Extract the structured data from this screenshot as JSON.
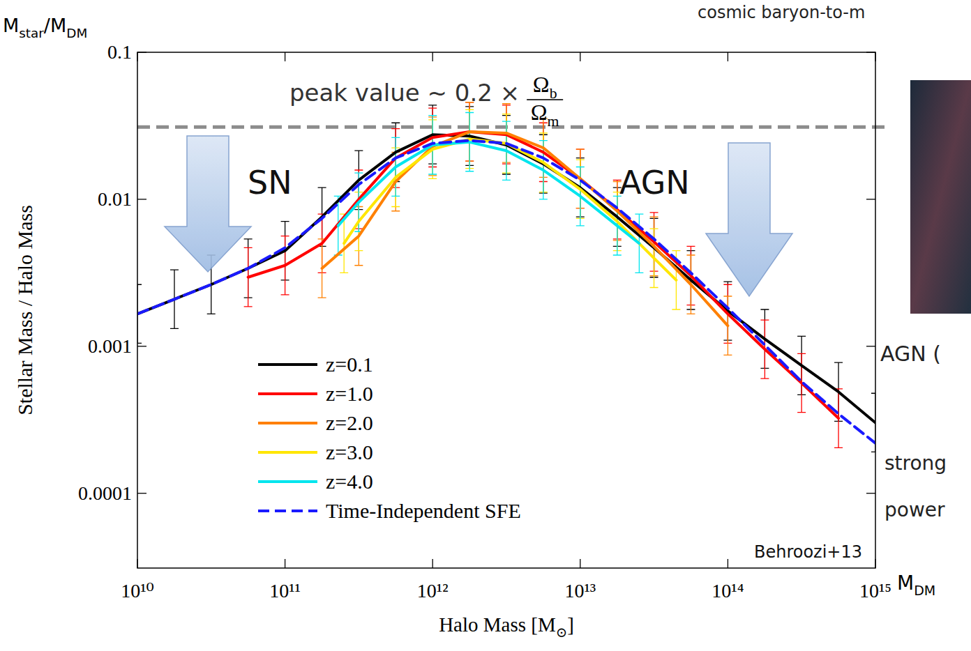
{
  "chart_data": {
    "type": "line",
    "log": true,
    "grid": false,
    "legend": "lower left",
    "x_label": [
      {
        "text": "Halo Mass [M"
      },
      {
        "text": "⊙",
        "sub": true
      },
      {
        "text": "]"
      }
    ],
    "y_label": "Stellar Mass / Halo Mass",
    "y_corner_label": [
      {
        "text": "M"
      },
      {
        "text": "star",
        "sub": true
      },
      {
        "text": "/M"
      },
      {
        "text": "DM",
        "sub": true
      }
    ],
    "x_corner_label": [
      {
        "text": "M"
      },
      {
        "text": "DM",
        "sub": true
      }
    ],
    "peak_label": {
      "text": "peak value ~ 0.2 ×",
      "numerator": [
        {
          "text": "Ω"
        },
        {
          "text": "b",
          "sub": true
        }
      ],
      "denominator": [
        {
          "text": "Ω"
        },
        {
          "text": "m",
          "sub": true
        }
      ]
    },
    "peak_line": 0.031,
    "annotations": [
      "SN",
      "AGN",
      "Behroozi+13"
    ],
    "side_texts": [
      "cosmic baryon-to-m",
      "AGN (",
      "strong",
      "power"
    ],
    "xlim": [
      10000000000.0,
      1000000000000000.0
    ],
    "ylim": [
      3.1e-05,
      0.1
    ],
    "xticks": [
      {
        "value": 10000000000.0,
        "label": "10¹⁰"
      },
      {
        "value": 100000000000.0,
        "label": "10¹¹"
      },
      {
        "value": 1000000000000.0,
        "label": "10¹²"
      },
      {
        "value": 10000000000000.0,
        "label": "10¹³"
      },
      {
        "value": 100000000000000.0,
        "label": "10¹⁴"
      },
      {
        "value": 1000000000000000.0,
        "label": "10¹⁵"
      }
    ],
    "yticks": [
      0.0001,
      0.001,
      0.01,
      0.1
    ],
    "series": [
      {
        "name": "z=0.1",
        "color": "#000000",
        "line_style": "solid",
        "x": [
          10000000000.0,
          17800000000.0,
          31600000000.0,
          56200000000.0,
          100000000000.0,
          178000000000.0,
          316000000000.0,
          562000000000.0,
          1000000000000.0,
          1780000000000.0,
          3160000000000.0,
          5620000000000.0,
          10000000000000.0,
          17800000000000.0,
          31600000000000.0,
          56200000000000.0,
          100000000000000.0,
          178000000000000.0,
          316000000000000.0,
          562000000000000.0,
          1000000000000000.0
        ],
        "values": [
          0.00166,
          0.00209,
          0.00263,
          0.00339,
          0.00447,
          0.00759,
          0.0135,
          0.0209,
          0.0275,
          0.0269,
          0.0234,
          0.0174,
          0.012,
          0.00759,
          0.00468,
          0.00282,
          0.00174,
          0.00112,
          0.000741,
          0.00049,
          0.000302
        ],
        "lower": [
          0.00105,
          0.00132,
          0.00166,
          0.00214,
          0.00282,
          0.00479,
          0.00851,
          0.0132,
          0.0174,
          0.017,
          0.0148,
          0.011,
          0.00759,
          0.00479,
          0.00295,
          0.00178,
          0.0011,
          0.000708,
          0.000468,
          0.000309,
          0.000191
        ],
        "upper": [
          0.00263,
          0.00331,
          0.00417,
          0.00537,
          0.00708,
          0.012,
          0.0214,
          0.0331,
          0.0437,
          0.0427,
          0.0372,
          0.0275,
          0.0191,
          0.012,
          0.00741,
          0.00447,
          0.00275,
          0.00178,
          0.00117,
          0.000776,
          0.000479
        ]
      },
      {
        "name": "z=1.0",
        "color": "#ff0000",
        "line_style": "solid",
        "x": [
          56200000000.0,
          100000000000.0,
          178000000000.0,
          316000000000.0,
          562000000000.0,
          1000000000000.0,
          1780000000000.0,
          3160000000000.0,
          5620000000000.0,
          10000000000000.0,
          17800000000000.0,
          31600000000000.0,
          56200000000000.0,
          100000000000000.0,
          178000000000000.0,
          316000000000000.0,
          562000000000000.0
        ],
        "values": [
          0.00295,
          0.00355,
          0.00501,
          0.01,
          0.0191,
          0.0263,
          0.0288,
          0.0275,
          0.0209,
          0.0138,
          0.00851,
          0.00513,
          0.00302,
          0.00166,
          0.000955,
          0.000562,
          0.000324
        ],
        "lower": [
          0.00186,
          0.00224,
          0.00316,
          0.00631,
          0.012,
          0.0166,
          0.0182,
          0.0174,
          0.0132,
          0.00871,
          0.00537,
          0.00324,
          0.00191,
          0.00105,
          0.000603,
          0.000355,
          0.000204
        ],
        "upper": [
          0.00468,
          0.00562,
          0.00794,
          0.0158,
          0.0302,
          0.0417,
          0.0457,
          0.0437,
          0.0331,
          0.0219,
          0.0135,
          0.00813,
          0.00479,
          0.00263,
          0.00151,
          0.000891,
          0.000513
        ]
      },
      {
        "name": "z=2.0",
        "color": "#ff8000",
        "line_style": "solid",
        "x": [
          178000000000.0,
          316000000000.0,
          562000000000.0,
          1000000000000.0,
          1780000000000.0,
          3160000000000.0,
          5620000000000.0,
          10000000000000.0,
          17800000000000.0,
          31600000000000.0,
          56200000000000.0,
          100000000000000.0
        ],
        "values": [
          0.00339,
          0.00562,
          0.0132,
          0.0229,
          0.0288,
          0.0282,
          0.0224,
          0.0138,
          0.00832,
          0.00479,
          0.00263,
          0.00138
        ],
        "lower": [
          0.00214,
          0.00355,
          0.00832,
          0.0145,
          0.0182,
          0.0178,
          0.0141,
          0.00871,
          0.00525,
          0.00302,
          0.00166,
          0.000871
        ],
        "upper": [
          0.00537,
          0.00891,
          0.0209,
          0.0363,
          0.0457,
          0.0447,
          0.0355,
          0.0219,
          0.0132,
          0.00759,
          0.00417,
          0.00219
        ]
      },
      {
        "name": "z=3.0",
        "color": "#ffe600",
        "line_style": "solid",
        "x": [
          251000000000.0,
          316000000000.0,
          562000000000.0,
          1000000000000.0,
          1780000000000.0,
          3160000000000.0,
          5620000000000.0,
          10000000000000.0,
          17800000000000.0,
          31600000000000.0,
          44700000000000.0
        ],
        "values": [
          0.00501,
          0.00708,
          0.0141,
          0.0219,
          0.0257,
          0.024,
          0.0178,
          0.0117,
          0.00708,
          0.00398,
          0.00282
        ],
        "lower": [
          0.00316,
          0.00447,
          0.00891,
          0.0138,
          0.0162,
          0.0151,
          0.0112,
          0.00741,
          0.00447,
          0.00251,
          0.00178
        ],
        "upper": [
          0.00794,
          0.0112,
          0.0224,
          0.0347,
          0.0407,
          0.038,
          0.0282,
          0.0186,
          0.0112,
          0.00631,
          0.00447
        ]
      },
      {
        "name": "z=4.0",
        "color": "#00e5ee",
        "line_style": "solid",
        "x": [
          229000000000.0,
          316000000000.0,
          562000000000.0,
          1000000000000.0,
          1780000000000.0,
          3160000000000.0,
          5620000000000.0,
          10000000000000.0,
          17800000000000.0,
          25100000000000.0
        ],
        "values": [
          0.00661,
          0.00955,
          0.0166,
          0.0234,
          0.0245,
          0.0214,
          0.0158,
          0.0105,
          0.00661,
          0.00501
        ],
        "lower": [
          0.00417,
          0.00603,
          0.0105,
          0.0148,
          0.0155,
          0.0135,
          0.01,
          0.00661,
          0.00417,
          0.00316
        ],
        "upper": [
          0.0105,
          0.0151,
          0.0263,
          0.0372,
          0.0389,
          0.0339,
          0.0251,
          0.0166,
          0.0105,
          0.00794
        ]
      },
      {
        "name": "Time-Independent SFE",
        "color": "#1a1aff",
        "line_style": "dashed",
        "x": [
          10000000000.0,
          17800000000.0,
          31600000000.0,
          56200000000.0,
          100000000000.0,
          178000000000.0,
          316000000000.0,
          562000000000.0,
          1000000000000.0,
          1780000000000.0,
          3160000000000.0,
          5620000000000.0,
          10000000000000.0,
          17800000000000.0,
          31600000000000.0,
          56200000000000.0,
          100000000000000.0,
          178000000000000.0,
          316000000000000.0,
          562000000000000.0,
          1000000000000000.0
        ],
        "values": [
          0.00166,
          0.00209,
          0.00263,
          0.00339,
          0.00468,
          0.00741,
          0.0126,
          0.0191,
          0.024,
          0.0251,
          0.024,
          0.0191,
          0.0135,
          0.00871,
          0.00537,
          0.00316,
          0.00182,
          0.00102,
          0.000575,
          0.000347,
          0.000219
        ]
      }
    ]
  }
}
